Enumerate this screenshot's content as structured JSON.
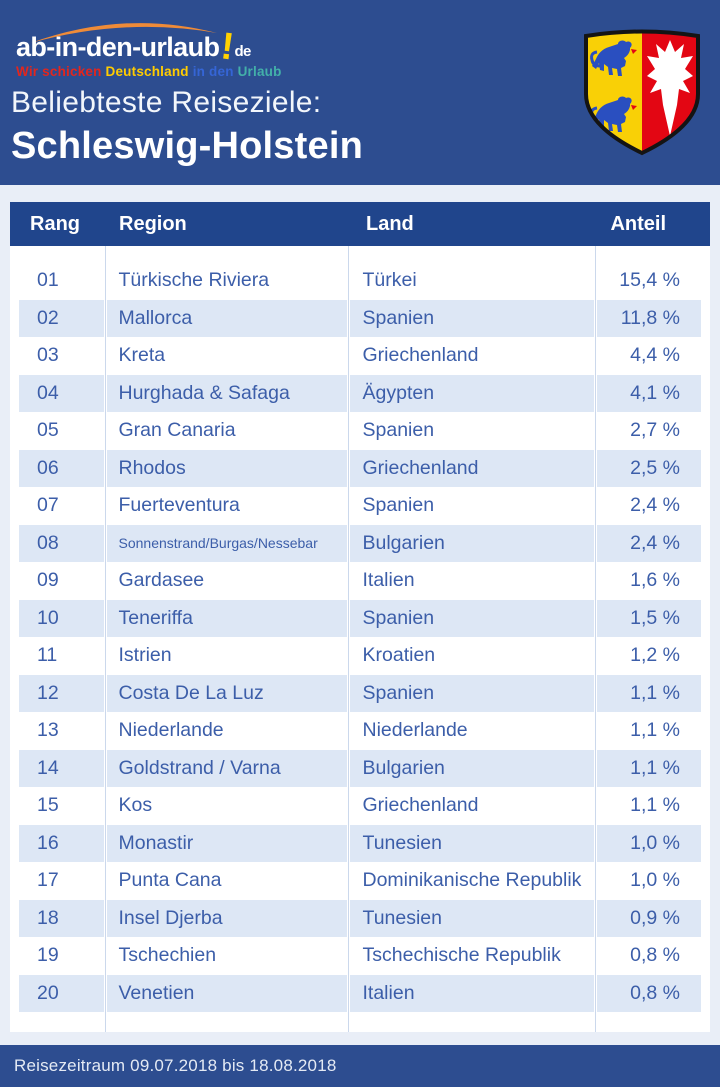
{
  "brand": {
    "name": "ab-in-den-urlaub",
    "exclamation": "!",
    "tld": "de",
    "tagline": [
      {
        "text": "Wir schicken ",
        "color": "#e2261d"
      },
      {
        "text": "Deutschland ",
        "color": "#ffcc00"
      },
      {
        "text": "in den ",
        "color": "#3565d6"
      },
      {
        "text": "Urlaub",
        "color": "#43b0a9"
      }
    ]
  },
  "header": {
    "subtitle": "Beliebteste Reiseziele:",
    "title": "Schleswig-Holstein"
  },
  "crest": {
    "name": "schleswig-holstein-coat-of-arms",
    "gold": "#f9d006",
    "red": "#e30613",
    "lion_blue": "#2a4fc0",
    "leaf_white": "#ffffff"
  },
  "chart_data": {
    "type": "table",
    "title": "Beliebteste Reiseziele: Schleswig-Holstein",
    "columns": [
      "Rang",
      "Region",
      "Land",
      "Anteil"
    ],
    "rows": [
      [
        "01",
        "Türkische Riviera",
        "Türkei",
        "15,4 %"
      ],
      [
        "02",
        "Mallorca",
        "Spanien",
        "11,8 %"
      ],
      [
        "03",
        "Kreta",
        "Griechenland",
        "4,4 %"
      ],
      [
        "04",
        "Hurghada & Safaga",
        "Ägypten",
        "4,1 %"
      ],
      [
        "05",
        "Gran Canaria",
        "Spanien",
        "2,7 %"
      ],
      [
        "06",
        "Rhodos",
        "Griechenland",
        "2,5 %"
      ],
      [
        "07",
        "Fuerteventura",
        "Spanien",
        "2,4 %"
      ],
      [
        "08",
        "Sonnenstrand/Burgas/Nessebar",
        "Bulgarien",
        "2,4 %"
      ],
      [
        "09",
        "Gardasee",
        "Italien",
        "1,6 %"
      ],
      [
        "10",
        "Teneriffa",
        "Spanien",
        "1,5 %"
      ],
      [
        "11",
        "Istrien",
        "Kroatien",
        "1,2 %"
      ],
      [
        "12",
        "Costa De La Luz",
        "Spanien",
        "1,1 %"
      ],
      [
        "13",
        "Niederlande",
        "Niederlande",
        "1,1 %"
      ],
      [
        "14",
        "Goldstrand / Varna",
        "Bulgarien",
        "1,1 %"
      ],
      [
        "15",
        "Kos",
        "Griechenland",
        "1,1 %"
      ],
      [
        "16",
        "Monastir",
        "Tunesien",
        "1,0 %"
      ],
      [
        "17",
        "Punta Cana",
        "Dominikanische Republik",
        "1,0 %"
      ],
      [
        "18",
        "Insel Djerba",
        "Tunesien",
        "0,9 %"
      ],
      [
        "19",
        "Tschechien",
        "Tschechische Republik",
        "0,8 %"
      ],
      [
        "20",
        "Venetien",
        "Italien",
        "0,8 %"
      ]
    ],
    "values_percent": [
      15.4,
      11.8,
      4.4,
      4.1,
      2.7,
      2.5,
      2.4,
      2.4,
      1.6,
      1.5,
      1.2,
      1.1,
      1.1,
      1.1,
      1.1,
      1.0,
      1.0,
      0.9,
      0.8,
      0.8
    ]
  },
  "footer": {
    "text": "Reisezeitraum 09.07.2018 bis 18.08.2018"
  },
  "colors": {
    "banner_blue": "#2d4d90",
    "table_header_blue": "#20458c",
    "row_alt_blue": "#dde7f5",
    "row_text_blue": "#3c5ea9",
    "page_bg": "#e9eef7",
    "swoosh_orange": "#ef8b38",
    "logo_yellow": "#ffd101"
  }
}
